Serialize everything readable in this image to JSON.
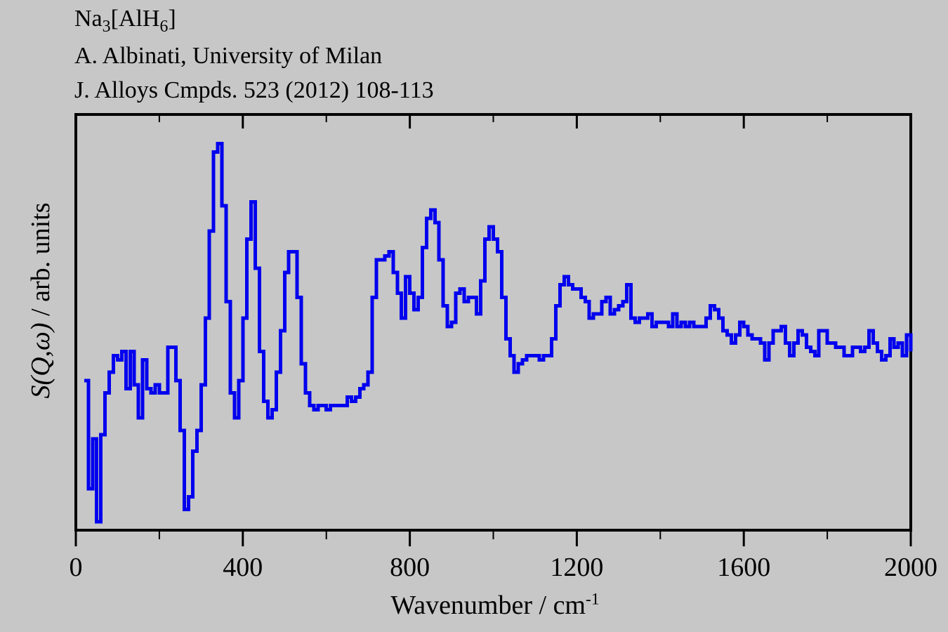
{
  "header": {
    "formula": {
      "base1": "Na",
      "sub1": "3",
      "base2": "[AlH",
      "sub2": "6",
      "base3": "]"
    },
    "author": "A. Albinati, University of Milan",
    "reference": "J. Alloys Cmpds. 523 (2012) 108-113"
  },
  "axes": {
    "x": {
      "label": "Wavenumber / cm",
      "label_superscript": "-1",
      "range": [
        0,
        2000
      ],
      "major_ticks": [
        0,
        400,
        800,
        1200,
        1600,
        2000
      ],
      "minor_ticks": [
        200,
        600,
        1000,
        1400,
        1800
      ]
    },
    "y": {
      "label_function": "S(Q,ω)",
      "label_units": " / arb. units",
      "range": [
        0,
        1
      ],
      "tick_labels": "none"
    }
  },
  "chart_data": {
    "type": "line",
    "line_style": "step",
    "color": "#0000ee",
    "title": "Na3[AlH6] — A. Albinati, University of Milan — J. Alloys Cmpds. 523 (2012) 108-113",
    "xlabel": "Wavenumber / cm^-1",
    "ylabel": "S(Q,ω) / arb. units",
    "xlim": [
      0,
      2000
    ],
    "ylim": [
      0,
      1
    ],
    "x_units": "cm^-1",
    "y_units": "arb. units (normalized intensity)",
    "grid": false,
    "legend": "none",
    "points": [
      [
        20,
        0.36
      ],
      [
        30,
        0.1
      ],
      [
        40,
        0.22
      ],
      [
        50,
        0.02
      ],
      [
        60,
        0.23
      ],
      [
        70,
        0.33
      ],
      [
        80,
        0.38
      ],
      [
        90,
        0.42
      ],
      [
        100,
        0.41
      ],
      [
        110,
        0.43
      ],
      [
        120,
        0.34
      ],
      [
        130,
        0.43
      ],
      [
        140,
        0.35
      ],
      [
        150,
        0.27
      ],
      [
        160,
        0.41
      ],
      [
        170,
        0.34
      ],
      [
        180,
        0.33
      ],
      [
        190,
        0.35
      ],
      [
        200,
        0.33
      ],
      [
        210,
        0.33
      ],
      [
        220,
        0.44
      ],
      [
        230,
        0.44
      ],
      [
        240,
        0.36
      ],
      [
        250,
        0.24
      ],
      [
        260,
        0.05
      ],
      [
        270,
        0.08
      ],
      [
        280,
        0.19
      ],
      [
        290,
        0.24
      ],
      [
        300,
        0.35
      ],
      [
        310,
        0.51
      ],
      [
        320,
        0.72
      ],
      [
        330,
        0.91
      ],
      [
        340,
        0.93
      ],
      [
        350,
        0.78
      ],
      [
        360,
        0.55
      ],
      [
        370,
        0.33
      ],
      [
        380,
        0.27
      ],
      [
        390,
        0.36
      ],
      [
        400,
        0.51
      ],
      [
        410,
        0.7
      ],
      [
        420,
        0.79
      ],
      [
        430,
        0.63
      ],
      [
        440,
        0.43
      ],
      [
        450,
        0.31
      ],
      [
        460,
        0.27
      ],
      [
        470,
        0.29
      ],
      [
        480,
        0.38
      ],
      [
        490,
        0.48
      ],
      [
        500,
        0.62
      ],
      [
        510,
        0.67
      ],
      [
        520,
        0.67
      ],
      [
        530,
        0.56
      ],
      [
        540,
        0.4
      ],
      [
        550,
        0.33
      ],
      [
        560,
        0.3
      ],
      [
        570,
        0.29
      ],
      [
        580,
        0.3
      ],
      [
        590,
        0.3
      ],
      [
        600,
        0.29
      ],
      [
        610,
        0.3
      ],
      [
        620,
        0.3
      ],
      [
        630,
        0.3
      ],
      [
        640,
        0.3
      ],
      [
        650,
        0.32
      ],
      [
        660,
        0.31
      ],
      [
        670,
        0.32
      ],
      [
        680,
        0.34
      ],
      [
        690,
        0.35
      ],
      [
        700,
        0.38
      ],
      [
        710,
        0.56
      ],
      [
        720,
        0.65
      ],
      [
        730,
        0.65
      ],
      [
        740,
        0.66
      ],
      [
        750,
        0.67
      ],
      [
        760,
        0.62
      ],
      [
        770,
        0.57
      ],
      [
        780,
        0.51
      ],
      [
        790,
        0.61
      ],
      [
        800,
        0.57
      ],
      [
        810,
        0.53
      ],
      [
        820,
        0.56
      ],
      [
        830,
        0.68
      ],
      [
        840,
        0.75
      ],
      [
        850,
        0.77
      ],
      [
        860,
        0.74
      ],
      [
        870,
        0.65
      ],
      [
        880,
        0.54
      ],
      [
        890,
        0.49
      ],
      [
        900,
        0.5
      ],
      [
        910,
        0.57
      ],
      [
        920,
        0.58
      ],
      [
        930,
        0.55
      ],
      [
        940,
        0.56
      ],
      [
        950,
        0.56
      ],
      [
        960,
        0.52
      ],
      [
        970,
        0.6
      ],
      [
        980,
        0.7
      ],
      [
        990,
        0.73
      ],
      [
        1000,
        0.7
      ],
      [
        1010,
        0.67
      ],
      [
        1020,
        0.56
      ],
      [
        1030,
        0.46
      ],
      [
        1040,
        0.42
      ],
      [
        1050,
        0.38
      ],
      [
        1060,
        0.4
      ],
      [
        1070,
        0.41
      ],
      [
        1080,
        0.42
      ],
      [
        1090,
        0.42
      ],
      [
        1100,
        0.42
      ],
      [
        1110,
        0.41
      ],
      [
        1120,
        0.42
      ],
      [
        1130,
        0.42
      ],
      [
        1140,
        0.46
      ],
      [
        1150,
        0.54
      ],
      [
        1160,
        0.59
      ],
      [
        1170,
        0.61
      ],
      [
        1180,
        0.59
      ],
      [
        1190,
        0.58
      ],
      [
        1200,
        0.58
      ],
      [
        1210,
        0.56
      ],
      [
        1220,
        0.55
      ],
      [
        1230,
        0.51
      ],
      [
        1240,
        0.52
      ],
      [
        1250,
        0.52
      ],
      [
        1260,
        0.55
      ],
      [
        1270,
        0.56
      ],
      [
        1280,
        0.52
      ],
      [
        1290,
        0.53
      ],
      [
        1300,
        0.54
      ],
      [
        1310,
        0.55
      ],
      [
        1320,
        0.59
      ],
      [
        1330,
        0.51
      ],
      [
        1340,
        0.5
      ],
      [
        1350,
        0.51
      ],
      [
        1360,
        0.51
      ],
      [
        1370,
        0.52
      ],
      [
        1380,
        0.49
      ],
      [
        1390,
        0.5
      ],
      [
        1400,
        0.5
      ],
      [
        1410,
        0.5
      ],
      [
        1420,
        0.49
      ],
      [
        1430,
        0.52
      ],
      [
        1440,
        0.49
      ],
      [
        1450,
        0.5
      ],
      [
        1460,
        0.49
      ],
      [
        1470,
        0.5
      ],
      [
        1480,
        0.49
      ],
      [
        1490,
        0.49
      ],
      [
        1500,
        0.49
      ],
      [
        1510,
        0.51
      ],
      [
        1520,
        0.54
      ],
      [
        1530,
        0.53
      ],
      [
        1540,
        0.51
      ],
      [
        1550,
        0.48
      ],
      [
        1560,
        0.47
      ],
      [
        1570,
        0.45
      ],
      [
        1580,
        0.47
      ],
      [
        1590,
        0.5
      ],
      [
        1600,
        0.49
      ],
      [
        1610,
        0.47
      ],
      [
        1620,
        0.46
      ],
      [
        1630,
        0.46
      ],
      [
        1640,
        0.45
      ],
      [
        1650,
        0.41
      ],
      [
        1660,
        0.45
      ],
      [
        1670,
        0.48
      ],
      [
        1680,
        0.48
      ],
      [
        1690,
        0.49
      ],
      [
        1700,
        0.45
      ],
      [
        1710,
        0.42
      ],
      [
        1720,
        0.45
      ],
      [
        1730,
        0.48
      ],
      [
        1740,
        0.47
      ],
      [
        1750,
        0.44
      ],
      [
        1760,
        0.43
      ],
      [
        1770,
        0.42
      ],
      [
        1780,
        0.48
      ],
      [
        1790,
        0.48
      ],
      [
        1800,
        0.45
      ],
      [
        1810,
        0.45
      ],
      [
        1820,
        0.44
      ],
      [
        1830,
        0.44
      ],
      [
        1840,
        0.42
      ],
      [
        1850,
        0.42
      ],
      [
        1860,
        0.44
      ],
      [
        1870,
        0.44
      ],
      [
        1880,
        0.43
      ],
      [
        1890,
        0.44
      ],
      [
        1900,
        0.48
      ],
      [
        1910,
        0.45
      ],
      [
        1920,
        0.43
      ],
      [
        1930,
        0.41
      ],
      [
        1940,
        0.42
      ],
      [
        1950,
        0.46
      ],
      [
        1960,
        0.44
      ],
      [
        1970,
        0.45
      ],
      [
        1980,
        0.42
      ],
      [
        1990,
        0.47
      ],
      [
        2000,
        0.43
      ]
    ]
  }
}
